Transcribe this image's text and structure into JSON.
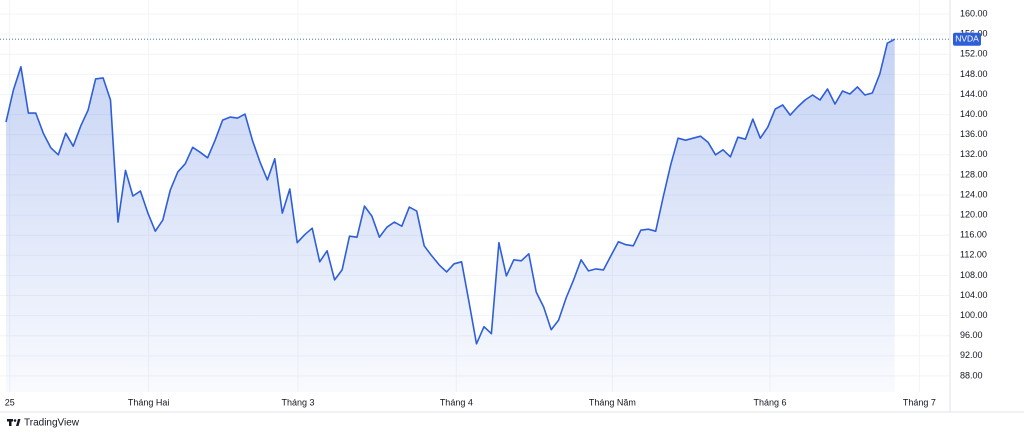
{
  "chart_data": {
    "type": "area",
    "series": [
      {
        "name": "NVDA",
        "color": "#2f5fd8",
        "values": [
          138.5,
          144.9,
          149.5,
          140.3,
          140.3,
          136.3,
          133.4,
          132.0,
          136.3,
          133.7,
          137.7,
          140.9,
          147.1,
          147.3,
          142.9,
          118.6,
          128.9,
          123.8,
          124.8,
          120.4,
          116.8,
          119.0,
          125.0,
          128.6,
          130.2,
          133.5,
          132.5,
          131.4,
          134.9,
          138.9,
          139.5,
          139.3,
          140.1,
          134.9,
          130.6,
          127.0,
          131.2,
          120.4,
          125.2,
          114.5,
          116.1,
          117.4,
          110.7,
          112.9,
          107.1,
          109.1,
          115.8,
          115.6,
          121.8,
          119.8,
          115.6,
          117.6,
          118.6,
          117.8,
          121.6,
          120.8,
          113.9,
          111.9,
          110.1,
          108.7,
          110.3,
          110.7,
          102.7,
          94.4,
          97.8,
          96.4,
          114.5,
          107.9,
          111.1,
          110.9,
          112.3,
          104.7,
          101.7,
          97.2,
          99.1,
          103.5,
          107.1,
          111.1,
          108.9,
          109.3,
          109.1,
          111.9,
          114.7,
          114.1,
          113.9,
          117.0,
          117.2,
          116.8,
          123.6,
          130.0,
          135.3,
          134.9,
          135.3,
          135.7,
          134.5,
          132.0,
          133.0,
          131.6,
          135.5,
          135.1,
          139.1,
          135.3,
          137.5,
          141.1,
          141.9,
          139.9,
          141.5,
          142.9,
          143.9,
          142.9,
          145.1,
          142.1,
          144.7,
          144.1,
          145.5,
          143.9,
          144.3,
          148.1,
          154.2,
          155.0
        ]
      }
    ],
    "xlim": [
      -0.8,
      126.4
    ],
    "xticks": [
      {
        "value": 0.5,
        "label": "25"
      },
      {
        "value": 19.1,
        "label": "Tháng Hai"
      },
      {
        "value": 39.1,
        "label": "Tháng 3"
      },
      {
        "value": 60.3,
        "label": "Tháng 4"
      },
      {
        "value": 81.2,
        "label": "Tháng Năm"
      },
      {
        "value": 102.3,
        "label": "Tháng 6"
      },
      {
        "value": 122.3,
        "label": "Tháng 7"
      }
    ],
    "ylim": [
      84.8,
      162.8
    ],
    "yticks": [
      {
        "value": 88,
        "label": "88.00"
      },
      {
        "value": 92,
        "label": "92.00"
      },
      {
        "value": 96,
        "label": "96.00"
      },
      {
        "value": 100,
        "label": "100.00"
      },
      {
        "value": 104,
        "label": "104.00"
      },
      {
        "value": 108,
        "label": "108.00"
      },
      {
        "value": 112,
        "label": "112.00"
      },
      {
        "value": 116,
        "label": "116.00"
      },
      {
        "value": 120,
        "label": "120.00"
      },
      {
        "value": 124,
        "label": "124.00"
      },
      {
        "value": 128,
        "label": "128.00"
      },
      {
        "value": 132,
        "label": "132.00"
      },
      {
        "value": 136,
        "label": "136.00"
      },
      {
        "value": 140,
        "label": "140.00"
      },
      {
        "value": 144,
        "label": "144.00"
      },
      {
        "value": 148,
        "label": "148.00"
      },
      {
        "value": 152,
        "label": "152.00"
      },
      {
        "value": 156,
        "label": "156.00"
      },
      {
        "value": 160,
        "label": "160.00"
      }
    ],
    "grid": true,
    "branding": "TradingView"
  }
}
